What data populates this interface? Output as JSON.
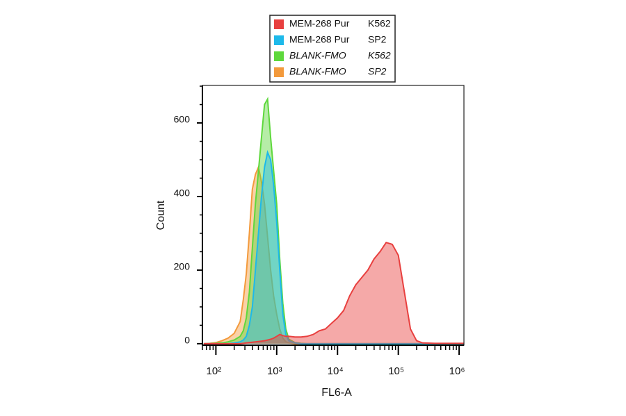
{
  "chart_data": {
    "type": "area",
    "xlabel": "FL6-A",
    "ylabel": "Count",
    "xscale": "log",
    "xlim": [
      60,
      1200000
    ],
    "ylim": [
      -4,
      702
    ],
    "xticks": [
      {
        "value": 100,
        "label": "10²"
      },
      {
        "value": 1000,
        "label": "10³"
      },
      {
        "value": 10000,
        "label": "10⁴"
      },
      {
        "value": 100000,
        "label": "10⁵"
      },
      {
        "value": 1000000,
        "label": "10⁶"
      }
    ],
    "xminorticks": [
      60,
      70,
      80,
      90,
      200,
      300,
      400,
      500,
      600,
      700,
      800,
      900,
      2000,
      3000,
      4000,
      5000,
      6000,
      7000,
      8000,
      9000,
      20000,
      30000,
      40000,
      50000,
      60000,
      70000,
      80000,
      90000,
      200000,
      300000,
      400000,
      500000,
      600000,
      700000,
      800000,
      900000
    ],
    "yticks": [
      0,
      200,
      400,
      600
    ],
    "yminorticks": [
      50,
      100,
      150,
      250,
      300,
      350,
      450,
      500,
      550,
      650,
      700
    ],
    "x": [
      63,
      79,
      100,
      126,
      158,
      200,
      251,
      282,
      316,
      355,
      398,
      447,
      501,
      562,
      631,
      708,
      794,
      891,
      1000,
      1122,
      1259,
      1413,
      1585,
      1995,
      2512,
      3162,
      3981,
      5012,
      6310,
      7943,
      10000,
      12589,
      15849,
      19953,
      25119,
      31623,
      39811,
      50119,
      63096,
      79433,
      100000,
      125893,
      158489,
      199526,
      251189,
      398107,
      630957,
      1000000,
      1200000
    ],
    "series": [
      {
        "name": "BLANK-FMO",
        "sample": "SP2",
        "italic": true,
        "color": "#f39a3c",
        "values": [
          0,
          1,
          3,
          8,
          15,
          28,
          60,
          120,
          190,
          300,
          420,
          460,
          480,
          440,
          380,
          290,
          200,
          130,
          80,
          40,
          15,
          5,
          2,
          0,
          0,
          0,
          0,
          0,
          0,
          0,
          0,
          0,
          0,
          0,
          0,
          0,
          0,
          0,
          0,
          0,
          0,
          0,
          0,
          0,
          0,
          0,
          0,
          0,
          0
        ]
      },
      {
        "name": "BLANK-FMO",
        "sample": "K562",
        "italic": true,
        "color": "#5ed83c",
        "values": [
          0,
          0,
          1,
          2,
          5,
          10,
          20,
          35,
          70,
          140,
          260,
          380,
          470,
          560,
          650,
          665,
          560,
          470,
          380,
          230,
          110,
          40,
          12,
          3,
          1,
          0,
          0,
          0,
          0,
          0,
          0,
          0,
          0,
          0,
          0,
          0,
          0,
          0,
          0,
          0,
          0,
          0,
          0,
          0,
          0,
          0,
          0,
          0,
          0
        ]
      },
      {
        "name": "MEM-268  Pur",
        "sample": "SP2",
        "italic": false,
        "color": "#1db9ea",
        "values": [
          0,
          0,
          0,
          0,
          0,
          2,
          5,
          10,
          20,
          50,
          100,
          200,
          300,
          400,
          480,
          520,
          500,
          430,
          330,
          200,
          80,
          25,
          8,
          2,
          0,
          0,
          0,
          0,
          0,
          0,
          0,
          0,
          0,
          0,
          0,
          0,
          0,
          0,
          0,
          0,
          0,
          0,
          0,
          0,
          0,
          0,
          0,
          0,
          0
        ]
      },
      {
        "name": "MEM-268  Pur",
        "sample": "K562",
        "italic": false,
        "color": "#e8403f",
        "values": [
          0,
          0,
          0,
          0,
          0,
          0,
          0,
          1,
          2,
          3,
          4,
          5,
          6,
          7,
          8,
          10,
          12,
          15,
          20,
          25,
          22,
          20,
          20,
          18,
          18,
          20,
          25,
          35,
          40,
          55,
          70,
          90,
          130,
          160,
          180,
          200,
          230,
          250,
          275,
          270,
          240,
          140,
          40,
          8,
          2,
          1,
          1,
          1,
          1
        ]
      }
    ]
  }
}
